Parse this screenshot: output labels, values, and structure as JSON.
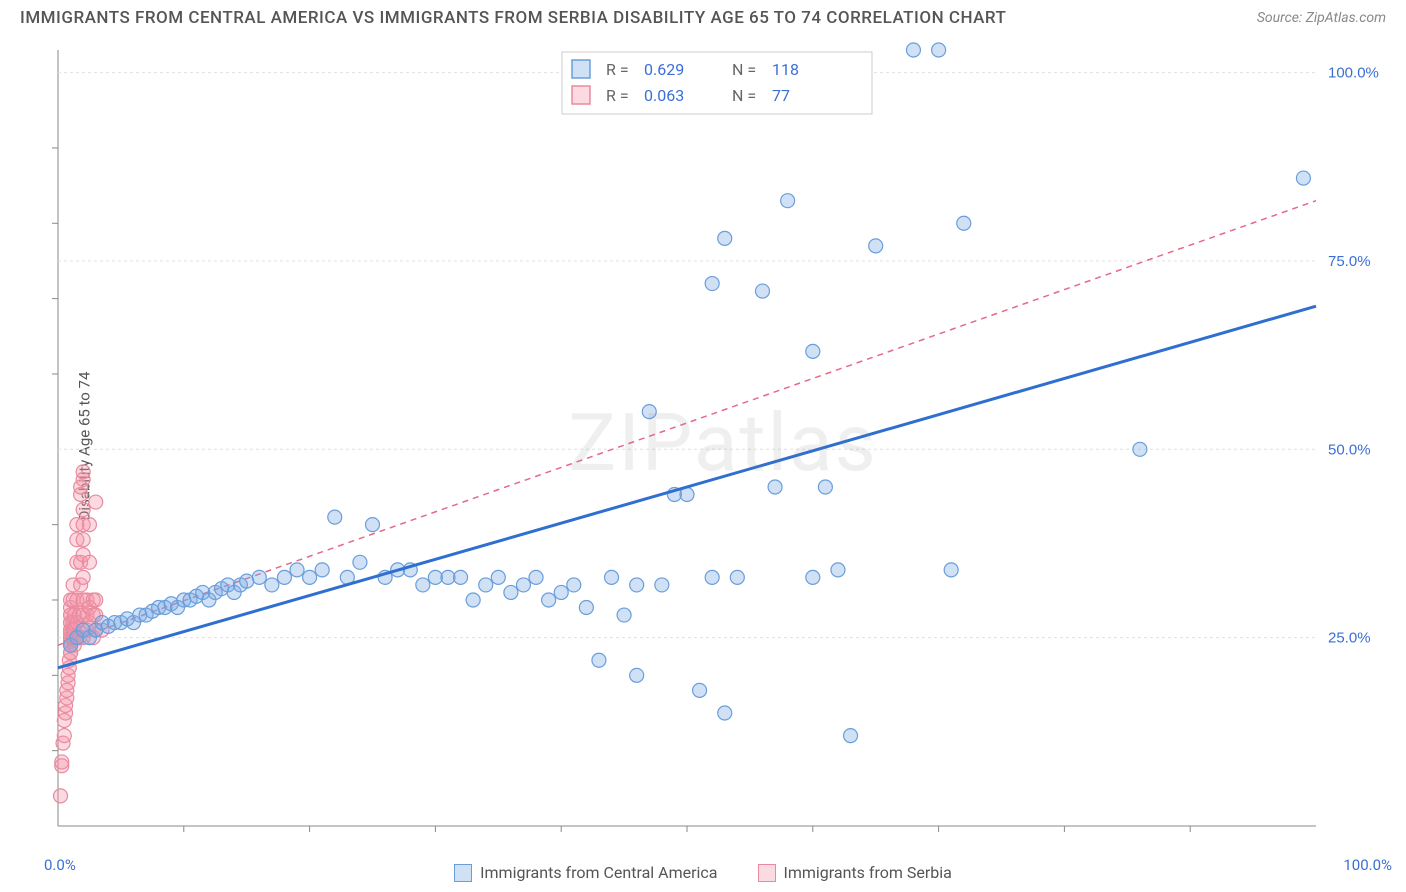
{
  "title": "IMMIGRANTS FROM CENTRAL AMERICA VS IMMIGRANTS FROM SERBIA DISABILITY AGE 65 TO 74 CORRELATION CHART",
  "source": "Source: ZipAtlas.com",
  "watermark": "ZIPatlas",
  "ylabel": "Disability Age 65 to 74",
  "chart": {
    "type": "scatter",
    "xlim": [
      0,
      100
    ],
    "ylim": [
      0,
      103
    ],
    "grid_color": "#e0e0e0",
    "axis_color": "#888",
    "background_color": "#ffffff",
    "yticks": [
      {
        "v": 25,
        "label": "25.0%"
      },
      {
        "v": 50,
        "label": "50.0%"
      },
      {
        "v": 75,
        "label": "75.0%"
      },
      {
        "v": 100,
        "label": "100.0%"
      }
    ],
    "xticks_minor": [
      10,
      20,
      30,
      40,
      50,
      60,
      70,
      80,
      90
    ],
    "yticks_minor": [
      10,
      20,
      30,
      40,
      60,
      70,
      80,
      90
    ],
    "tick_label_color": "#3b6fd6",
    "marker_radius": 7,
    "series": {
      "central_america": {
        "label": "Immigrants from Central America",
        "fill": "rgba(120,170,230,0.35)",
        "stroke": "#6a9edb",
        "trend_color": "#2f6fd0",
        "trend_width": 3,
        "trend": {
          "x1": 0,
          "y1": 21,
          "x2": 100,
          "y2": 69
        },
        "points": [
          [
            1,
            24
          ],
          [
            1.5,
            25
          ],
          [
            2,
            26
          ],
          [
            2.5,
            25
          ],
          [
            3,
            26
          ],
          [
            3.5,
            27
          ],
          [
            4,
            26.5
          ],
          [
            4.5,
            27
          ],
          [
            5,
            27
          ],
          [
            5.5,
            27.5
          ],
          [
            6,
            27
          ],
          [
            6.5,
            28
          ],
          [
            7,
            28
          ],
          [
            7.5,
            28.5
          ],
          [
            8,
            29
          ],
          [
            8.5,
            29
          ],
          [
            9,
            29.5
          ],
          [
            9.5,
            29
          ],
          [
            10,
            30
          ],
          [
            10.5,
            30
          ],
          [
            11,
            30.5
          ],
          [
            11.5,
            31
          ],
          [
            12,
            30
          ],
          [
            12.5,
            31
          ],
          [
            13,
            31.5
          ],
          [
            13.5,
            32
          ],
          [
            14,
            31
          ],
          [
            14.5,
            32
          ],
          [
            15,
            32.5
          ],
          [
            16,
            33
          ],
          [
            17,
            32
          ],
          [
            18,
            33
          ],
          [
            19,
            34
          ],
          [
            20,
            33
          ],
          [
            21,
            34
          ],
          [
            22,
            41
          ],
          [
            23,
            33
          ],
          [
            24,
            35
          ],
          [
            25,
            40
          ],
          [
            26,
            33
          ],
          [
            27,
            34
          ],
          [
            28,
            34
          ],
          [
            29,
            32
          ],
          [
            30,
            33
          ],
          [
            31,
            33
          ],
          [
            32,
            33
          ],
          [
            33,
            30
          ],
          [
            34,
            32
          ],
          [
            35,
            33
          ],
          [
            36,
            31
          ],
          [
            37,
            32
          ],
          [
            38,
            33
          ],
          [
            39,
            30
          ],
          [
            40,
            31
          ],
          [
            41,
            32
          ],
          [
            42,
            29
          ],
          [
            43,
            22
          ],
          [
            44,
            33
          ],
          [
            45,
            28
          ],
          [
            46,
            20
          ],
          [
            46,
            32
          ],
          [
            47,
            55
          ],
          [
            48,
            32
          ],
          [
            49,
            44
          ],
          [
            50,
            44
          ],
          [
            51,
            18
          ],
          [
            52,
            33
          ],
          [
            52,
            72
          ],
          [
            53,
            15
          ],
          [
            53,
            78
          ],
          [
            54,
            33
          ],
          [
            56,
            71
          ],
          [
            57,
            45
          ],
          [
            58,
            83
          ],
          [
            60,
            33
          ],
          [
            60,
            63
          ],
          [
            61,
            45
          ],
          [
            62,
            34
          ],
          [
            63,
            12
          ],
          [
            65,
            77
          ],
          [
            68,
            103
          ],
          [
            70,
            103
          ],
          [
            71,
            34
          ],
          [
            72,
            80
          ],
          [
            86,
            50
          ],
          [
            99,
            86
          ]
        ]
      },
      "serbia": {
        "label": "Immigrants from Serbia",
        "fill": "rgba(245,150,170,0.35)",
        "stroke": "#e88ba0",
        "trend_color": "#e56a87",
        "trend_width": 1.5,
        "trend_dash": "6,5",
        "trend": {
          "x1": 0,
          "y1": 24,
          "x2": 100,
          "y2": 83
        },
        "points": [
          [
            0.2,
            4
          ],
          [
            0.3,
            8
          ],
          [
            0.3,
            8.5
          ],
          [
            0.4,
            11
          ],
          [
            0.5,
            12
          ],
          [
            0.5,
            14
          ],
          [
            0.6,
            15
          ],
          [
            0.6,
            16
          ],
          [
            0.7,
            17
          ],
          [
            0.7,
            18
          ],
          [
            0.8,
            19
          ],
          [
            0.8,
            20
          ],
          [
            0.9,
            21
          ],
          [
            0.9,
            22
          ],
          [
            1,
            23
          ],
          [
            1,
            24
          ],
          [
            1,
            24.5
          ],
          [
            1,
            25
          ],
          [
            1,
            25.5
          ],
          [
            1,
            26
          ],
          [
            1,
            27
          ],
          [
            1,
            28
          ],
          [
            1,
            29
          ],
          [
            1,
            30
          ],
          [
            1,
            25
          ],
          [
            1,
            24
          ],
          [
            1,
            23
          ],
          [
            1,
            26
          ],
          [
            1,
            27
          ],
          [
            1,
            28
          ],
          [
            1.2,
            25
          ],
          [
            1.2,
            26
          ],
          [
            1.2,
            27
          ],
          [
            1.2,
            30
          ],
          [
            1.2,
            32
          ],
          [
            1.3,
            24
          ],
          [
            1.3,
            25
          ],
          [
            1.3,
            26
          ],
          [
            1.3,
            28
          ],
          [
            1.5,
            25
          ],
          [
            1.5,
            27
          ],
          [
            1.5,
            30
          ],
          [
            1.5,
            35
          ],
          [
            1.5,
            38
          ],
          [
            1.5,
            40
          ],
          [
            1.7,
            25
          ],
          [
            1.7,
            28
          ],
          [
            1.8,
            32
          ],
          [
            1.8,
            35
          ],
          [
            1.8,
            44
          ],
          [
            1.8,
            45
          ],
          [
            2,
            25
          ],
          [
            2,
            26
          ],
          [
            2,
            28
          ],
          [
            2,
            30
          ],
          [
            2,
            33
          ],
          [
            2,
            36
          ],
          [
            2,
            38
          ],
          [
            2,
            40
          ],
          [
            2,
            42
          ],
          [
            2,
            46
          ],
          [
            2,
            47
          ],
          [
            2.3,
            26
          ],
          [
            2.3,
            28
          ],
          [
            2.3,
            30
          ],
          [
            2.5,
            27
          ],
          [
            2.5,
            29
          ],
          [
            2.5,
            35
          ],
          [
            2.5,
            40
          ],
          [
            2.8,
            25
          ],
          [
            2.8,
            28
          ],
          [
            2.8,
            30
          ],
          [
            3,
            26
          ],
          [
            3,
            28
          ],
          [
            3,
            30
          ],
          [
            3,
            43
          ],
          [
            3.5,
            26
          ]
        ]
      }
    },
    "stats_box": {
      "border_color": "#ccc",
      "bg": "#ffffff",
      "rows": [
        {
          "swatch_fill": "rgba(120,170,230,0.35)",
          "swatch_stroke": "#6a9edb",
          "r_label": "R =",
          "r_val": "0.629",
          "n_label": "N =",
          "n_val": "118"
        },
        {
          "swatch_fill": "rgba(245,150,170,0.35)",
          "swatch_stroke": "#e88ba0",
          "r_label": "R =",
          "r_val": "0.063",
          "n_label": "N =",
          "n_val": "77"
        }
      ],
      "label_color": "#666",
      "value_color": "#3b6fd6"
    }
  },
  "corner_labels": {
    "bl": "0.0%",
    "br": "100.0%",
    "color": "#3b6fd6"
  }
}
